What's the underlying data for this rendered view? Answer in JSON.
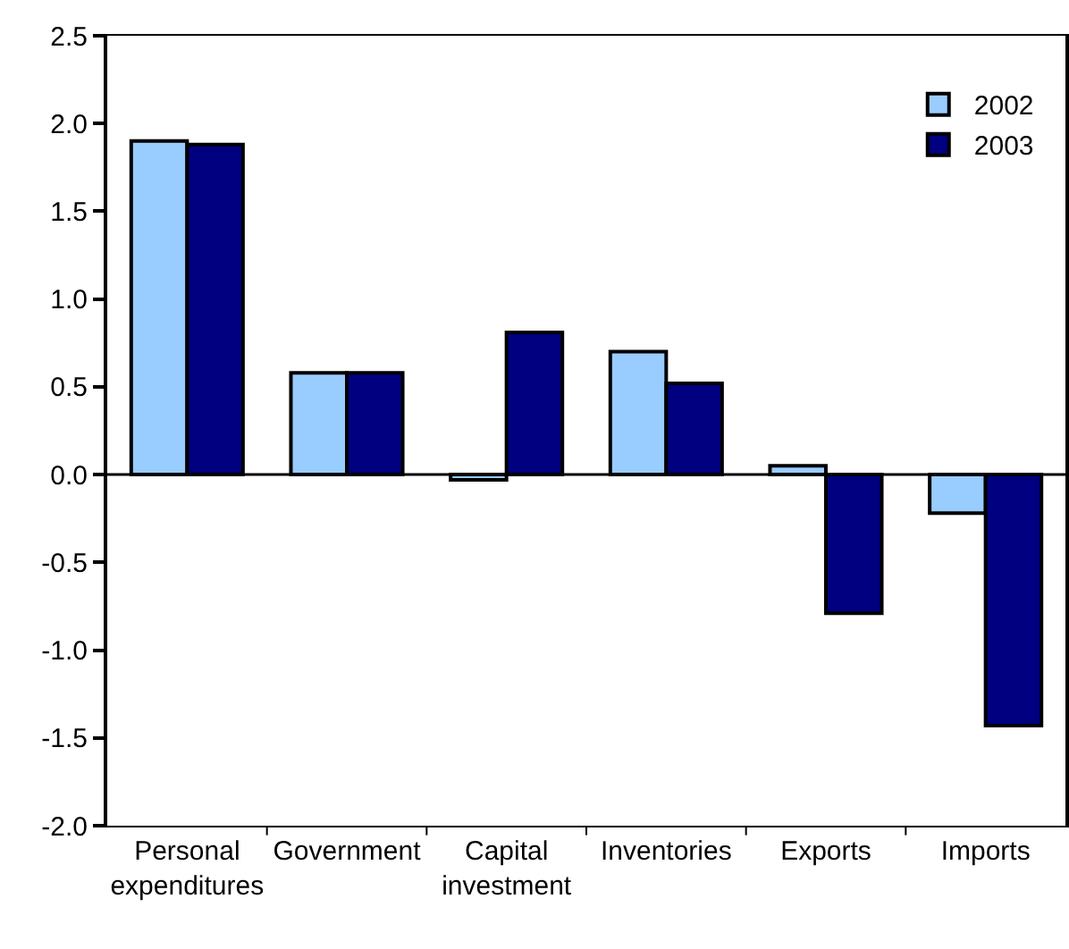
{
  "chart_data": {
    "type": "bar",
    "categories": [
      "Personal expenditures",
      "Government",
      "Capital investment",
      "Inventories",
      "Exports",
      "Imports"
    ],
    "series": [
      {
        "name": "2002",
        "color": "#99ccff",
        "values": [
          1.9,
          0.58,
          -0.03,
          0.7,
          0.05,
          -0.22
        ]
      },
      {
        "name": "2003",
        "color": "#000080",
        "values": [
          1.88,
          0.58,
          0.81,
          0.52,
          -0.79,
          -1.43
        ]
      }
    ],
    "ylim": [
      -2.0,
      2.5
    ],
    "yticks": [
      {
        "value": -2,
        "label": "-2.0"
      },
      {
        "value": -1.5,
        "label": "-1.5"
      },
      {
        "value": -1,
        "label": "-1.0"
      },
      {
        "value": -0.5,
        "label": "-0.5"
      },
      {
        "value": 0,
        "label": "0.0"
      },
      {
        "value": 0.5,
        "label": "0.5"
      },
      {
        "value": 1,
        "label": "1.0"
      },
      {
        "value": 1.5,
        "label": "1.5"
      },
      {
        "value": 2,
        "label": "2.0"
      },
      {
        "value": 2.5,
        "label": "2.5"
      }
    ],
    "ref_lines": [
      {
        "axis": "y",
        "value": 0
      }
    ],
    "grid": false,
    "legend": "top right"
  }
}
